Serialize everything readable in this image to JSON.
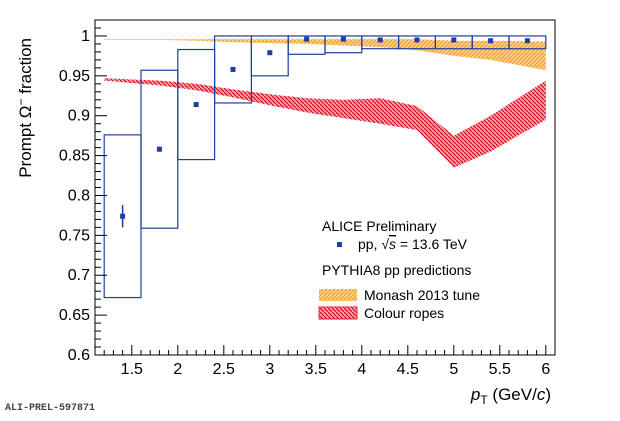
{
  "chart_data": {
    "type": "scatter",
    "ylabel_prefix": "Prompt Ω",
    "ylabel_sup": "−",
    "ylabel_suffix": " fraction",
    "xlabel_var": "p",
    "xlabel_sub": "T",
    "xlabel_unit_open": " (GeV/",
    "xlabel_unit_var": "c",
    "xlabel_unit_close": ")",
    "xlim": [
      1.1,
      6.1
    ],
    "ylim": [
      0.6,
      1.02
    ],
    "x_ticks": [
      1.5,
      2,
      2.5,
      3,
      3.5,
      4,
      4.5,
      5,
      5.5,
      6
    ],
    "x_tick_labels": [
      "1.5",
      "2",
      "2.5",
      "3",
      "3.5",
      "4",
      "4.5",
      "5",
      "5.5",
      "6"
    ],
    "y_ticks": [
      0.6,
      0.65,
      0.7,
      0.75,
      0.8,
      0.85,
      0.9,
      0.95,
      1
    ],
    "y_tick_labels": [
      "0.6",
      "0.65",
      "0.7",
      "0.75",
      "0.8",
      "0.85",
      "0.9",
      "0.95",
      "1"
    ],
    "grid": false,
    "legend_header_1": "ALICE Preliminary",
    "legend_header_2": "PYTHIA8 pp predictions",
    "series": [
      {
        "name_prefix": "pp, ",
        "name_sqrt": "√",
        "name_var": "s",
        "name_suffix": " = 13.6 TeV",
        "kind": "data",
        "color": "#1f3f9f",
        "points": [
          {
            "x": 1.4,
            "y": 0.774,
            "stat": 0.014,
            "xlo": 1.2,
            "xhi": 1.6,
            "syslo": 0.672,
            "syshi": 0.876
          },
          {
            "x": 1.8,
            "y": 0.858,
            "stat": 0.003,
            "xlo": 1.6,
            "xhi": 2.0,
            "syslo": 0.759,
            "syshi": 0.957
          },
          {
            "x": 2.2,
            "y": 0.914,
            "stat": 0.003,
            "xlo": 2.0,
            "xhi": 2.4,
            "syslo": 0.845,
            "syshi": 0.983
          },
          {
            "x": 2.6,
            "y": 0.958,
            "stat": 0.002,
            "xlo": 2.4,
            "xhi": 2.8,
            "syslo": 0.916,
            "syshi": 1.0
          },
          {
            "x": 3.0,
            "y": 0.979,
            "stat": 0.002,
            "xlo": 2.8,
            "xhi": 3.2,
            "syslo": 0.95,
            "syshi": 1.0
          },
          {
            "x": 3.4,
            "y": 0.996,
            "stat": 0.001,
            "xlo": 3.2,
            "xhi": 3.6,
            "syslo": 0.977,
            "syshi": 1.0
          },
          {
            "x": 3.8,
            "y": 0.996,
            "stat": 0.001,
            "xlo": 3.6,
            "xhi": 4.0,
            "syslo": 0.979,
            "syshi": 1.0
          },
          {
            "x": 4.2,
            "y": 0.995,
            "stat": 0.001,
            "xlo": 4.0,
            "xhi": 4.4,
            "syslo": 0.984,
            "syshi": 1.0
          },
          {
            "x": 4.6,
            "y": 0.995,
            "stat": 0.001,
            "xlo": 4.4,
            "xhi": 4.8,
            "syslo": 0.984,
            "syshi": 1.0
          },
          {
            "x": 5.0,
            "y": 0.995,
            "stat": 0.001,
            "xlo": 4.8,
            "xhi": 5.2,
            "syslo": 0.984,
            "syshi": 1.0
          },
          {
            "x": 5.4,
            "y": 0.994,
            "stat": 0.001,
            "xlo": 5.2,
            "xhi": 5.6,
            "syslo": 0.984,
            "syshi": 1.0
          },
          {
            "x": 5.8,
            "y": 0.994,
            "stat": 0.001,
            "xlo": 5.6,
            "xhi": 6.0,
            "syslo": 0.984,
            "syshi": 1.0
          }
        ]
      },
      {
        "name": "Monash 2013 tune",
        "kind": "band",
        "color": "#f5a623",
        "x": [
          1.4,
          1.8,
          2.2,
          2.6,
          3.0,
          3.4,
          3.8,
          4.2,
          4.6,
          5.0,
          5.4,
          5.8
        ],
        "lo": [
          0.995,
          0.995,
          0.994,
          0.992,
          0.991,
          0.99,
          0.988,
          0.986,
          0.982,
          0.975,
          0.97,
          0.957
        ],
        "hi": [
          0.996,
          0.996,
          0.996,
          0.996,
          0.996,
          0.996,
          0.996,
          0.996,
          0.996,
          0.994,
          0.994,
          0.993
        ]
      },
      {
        "name": "Colour ropes",
        "kind": "band",
        "color": "#e0242b",
        "x": [
          1.4,
          1.8,
          2.2,
          2.6,
          3.0,
          3.4,
          3.8,
          4.2,
          4.6,
          5.0,
          5.4,
          5.8
        ],
        "lo": [
          0.944,
          0.938,
          0.932,
          0.923,
          0.913,
          0.904,
          0.897,
          0.89,
          0.882,
          0.835,
          0.855,
          0.895
        ],
        "hi": [
          0.947,
          0.944,
          0.94,
          0.933,
          0.927,
          0.922,
          0.92,
          0.922,
          0.912,
          0.875,
          0.9,
          0.944
        ]
      }
    ]
  },
  "footer_tag": "ALI-PREL-597871"
}
